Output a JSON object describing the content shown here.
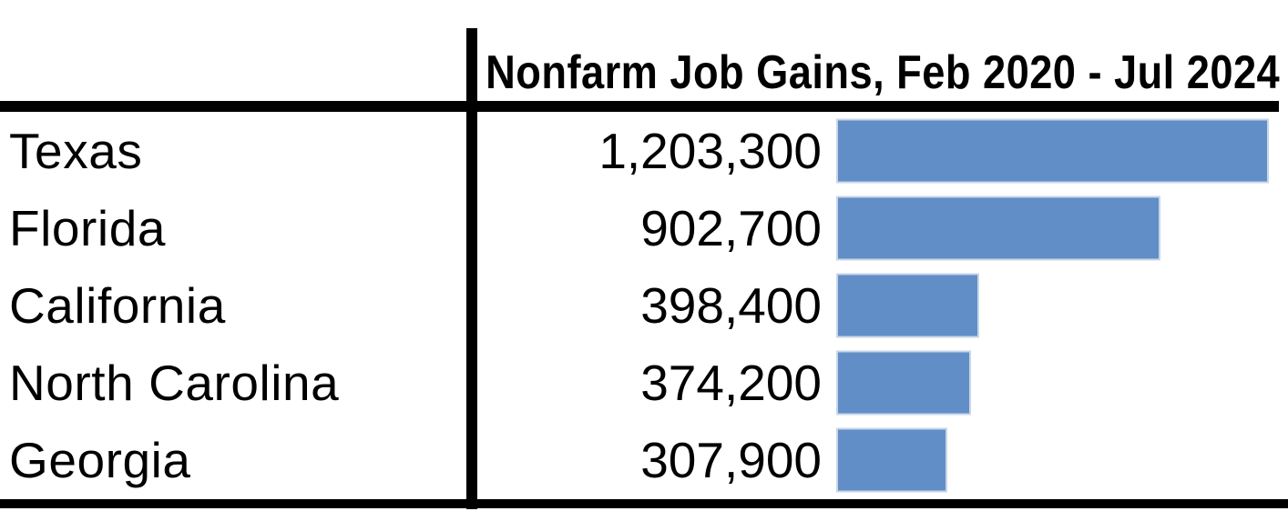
{
  "chart_data": {
    "type": "bar",
    "orientation": "horizontal",
    "title": "Nonfarm Job Gains, Feb 2020 - Jul 2024",
    "categories": [
      "Texas",
      "Florida",
      "California",
      "North Carolina",
      "Georgia"
    ],
    "values": [
      1203300,
      902700,
      398400,
      374200,
      307900
    ],
    "value_labels": [
      "1,203,300",
      "902,700",
      "398,400",
      "374,200",
      "307,900"
    ],
    "xlim": [
      0,
      1203300
    ],
    "grid": false,
    "legend": false,
    "bar_color": "#618ec6",
    "bar_border_color": "#c8d6ea",
    "rule_color": "#000000",
    "text_color": "#000000",
    "background_color": "#ffffff"
  }
}
